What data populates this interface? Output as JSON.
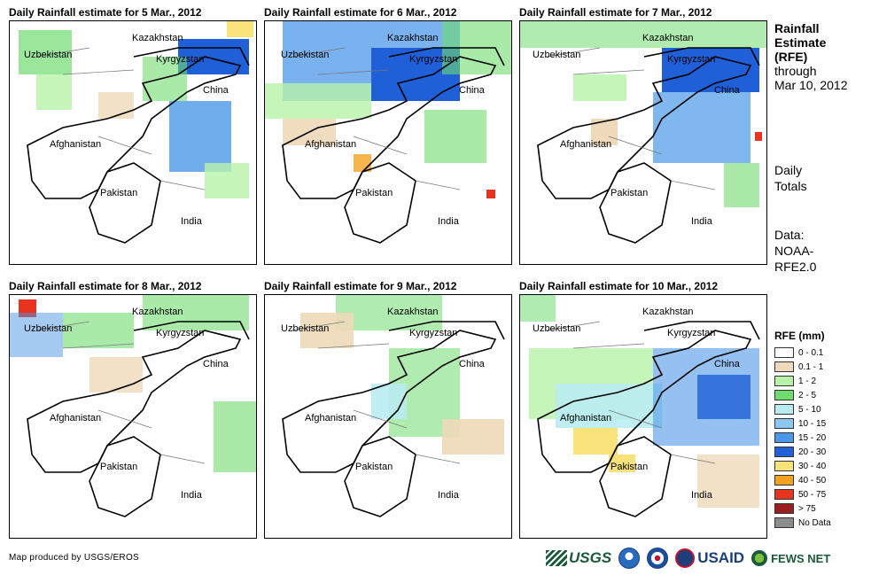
{
  "panels": [
    {
      "title": "Daily Rainfall estimate for 5 Mar., 2012"
    },
    {
      "title": "Daily Rainfall estimate for 6 Mar., 2012"
    },
    {
      "title": "Daily Rainfall estimate for 7 Mar., 2012"
    },
    {
      "title": "Daily Rainfall estimate for 8 Mar., 2012"
    },
    {
      "title": "Daily Rainfall estimate for 9 Mar., 2012"
    },
    {
      "title": "Daily Rainfall estimate for 10 Mar., 2012"
    }
  ],
  "countries": {
    "kazakhstan": "Kazakhstan",
    "uzbekistan": "Uzbekistan",
    "kyrgyzstan": "Kyrgyzstan",
    "china": "China",
    "afghanistan": "Afghanistan",
    "pakistan": "Pakistan",
    "india": "India"
  },
  "side": {
    "title_line1": "Rainfall",
    "title_line2": "Estimate",
    "title_line3": "(RFE)",
    "through": "through",
    "date": "Mar 10, 2012",
    "daily1": "Daily",
    "daily2": "Totals",
    "data1": "Data:",
    "data2": "NOAA-",
    "data3": "RFE2.0"
  },
  "legend": {
    "title": "RFE (mm)",
    "items": [
      {
        "label": "0 - 0.1",
        "color": "#ffffff"
      },
      {
        "label": "0.1 - 1",
        "color": "#eed9b8"
      },
      {
        "label": "1 - 2",
        "color": "#b8f2a8"
      },
      {
        "label": "2 - 5",
        "color": "#6fdc6f"
      },
      {
        "label": "5 - 10",
        "color": "#b8ecf2"
      },
      {
        "label": "10 - 15",
        "color": "#8cc8f2"
      },
      {
        "label": "15 - 20",
        "color": "#4c98e8"
      },
      {
        "label": "20 - 30",
        "color": "#1f5fd8"
      },
      {
        "label": "30 - 40",
        "color": "#f7e37a"
      },
      {
        "label": "40 - 50",
        "color": "#f2a21f"
      },
      {
        "label": "50 - 75",
        "color": "#e8331f"
      },
      {
        "label": "> 75",
        "color": "#9c1f1f"
      },
      {
        "label": "No Data",
        "color": "#8c8c8c"
      }
    ]
  },
  "footer": {
    "credit": "Map produced by USGS/EROS",
    "usgs": "USGS",
    "usaid": "USAID",
    "fews": "FEWS NET"
  }
}
